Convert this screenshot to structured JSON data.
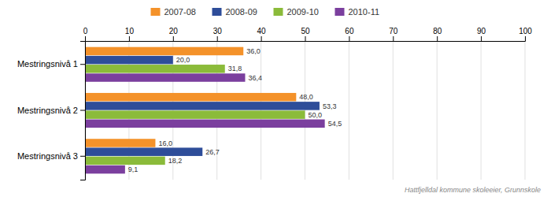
{
  "chart_data": {
    "type": "bar",
    "orientation": "horizontal",
    "categories": [
      "Mestringsnivå 1",
      "Mestringsnivå 2",
      "Mestringsnivå 3"
    ],
    "series": [
      {
        "name": "2007-08",
        "color": "#F4922A",
        "values": [
          36.0,
          48.0,
          16.0
        ],
        "value_labels": [
          "36,0",
          "48,0",
          "16,0"
        ]
      },
      {
        "name": "2008-09",
        "color": "#2E4D99",
        "values": [
          20.0,
          53.3,
          26.7
        ],
        "value_labels": [
          "20,0",
          "53,3",
          "26,7"
        ]
      },
      {
        "name": "2009-10",
        "color": "#8BBB3A",
        "values": [
          31.8,
          50.0,
          18.2
        ],
        "value_labels": [
          "31,8",
          "50,0",
          "18,2"
        ]
      },
      {
        "name": "2010-11",
        "color": "#7B3F9E",
        "values": [
          36.4,
          54.5,
          9.1
        ],
        "value_labels": [
          "36,4",
          "54,5",
          "9,1"
        ]
      }
    ],
    "xlim": [
      0,
      100
    ],
    "xticks": [
      0,
      10,
      20,
      30,
      40,
      50,
      60,
      70,
      80,
      90,
      100
    ],
    "grid": true,
    "legend": "top",
    "data_labels": true,
    "annotations": [
      "Hattfjelldal kommune skoleeier, Grunnskole"
    ]
  }
}
